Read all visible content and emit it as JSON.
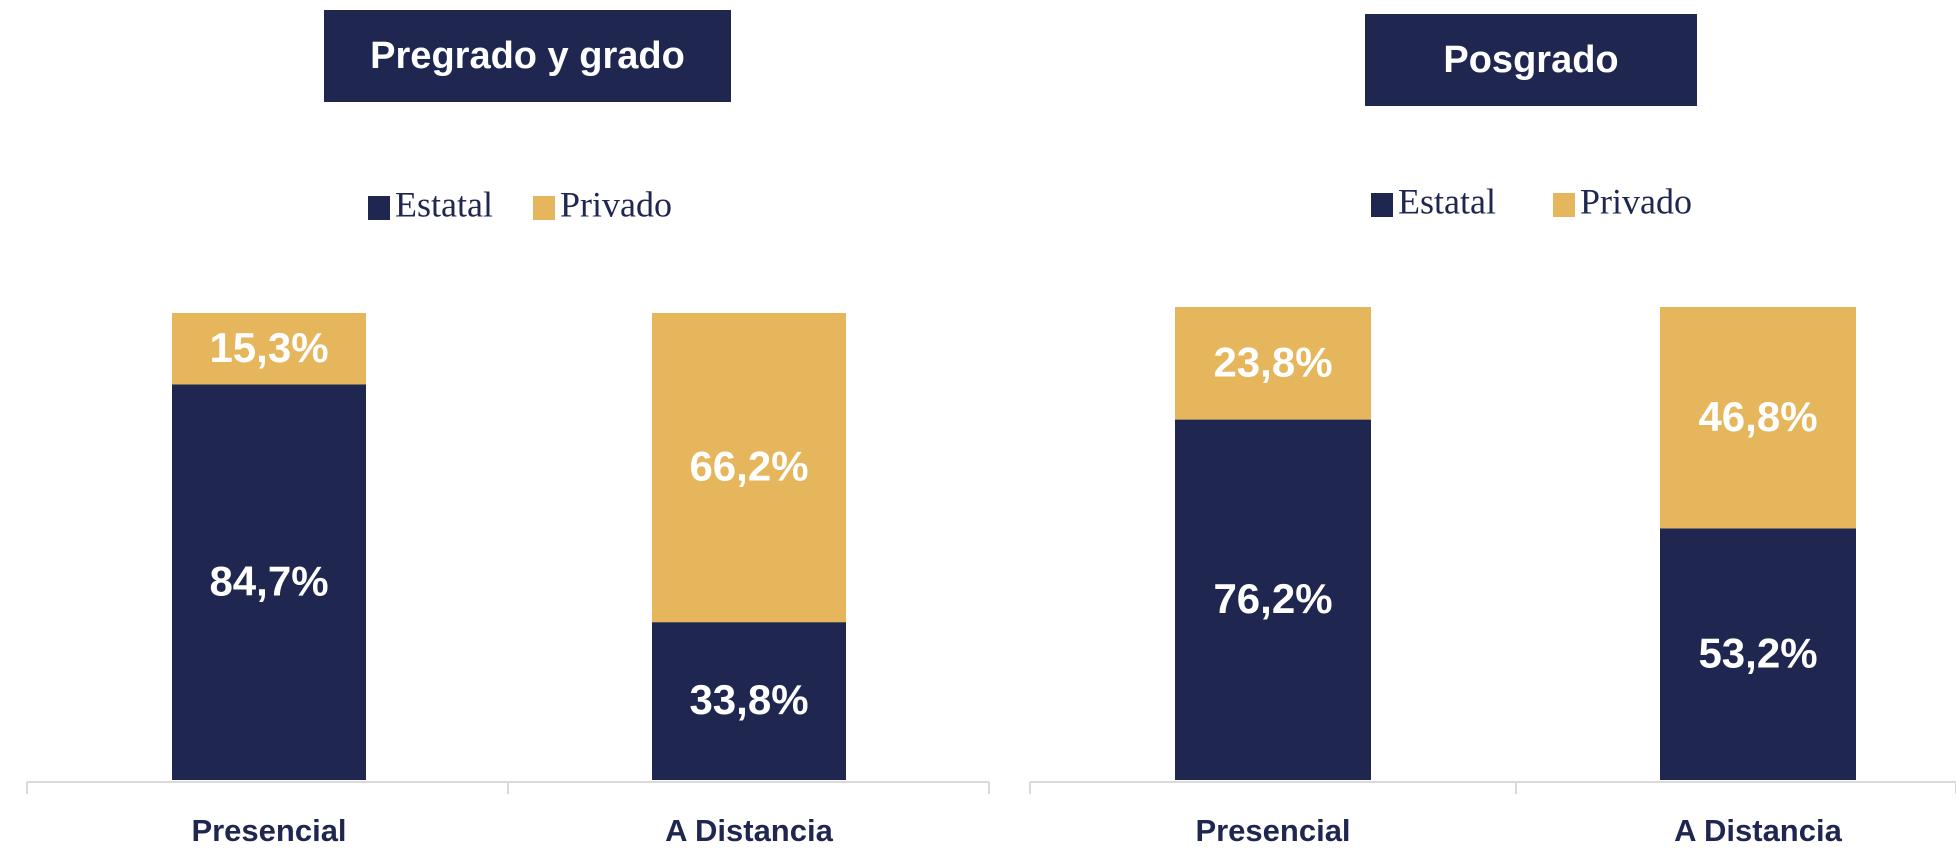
{
  "chart_data": [
    {
      "type": "bar",
      "stacked": true,
      "title": "Pregrado y grado",
      "categories": [
        "Presencial",
        "A Distancia"
      ],
      "series": [
        {
          "name": "Estatal",
          "color": "#1f2750",
          "values": [
            84.7,
            33.8
          ],
          "value_labels": [
            "84,7%",
            "33,8%"
          ]
        },
        {
          "name": "Privado",
          "color": "#e5b65c",
          "values": [
            15.3,
            66.2
          ],
          "value_labels": [
            "15,3%",
            "66,2%"
          ]
        }
      ],
      "ylim": [
        0,
        100
      ]
    },
    {
      "type": "bar",
      "stacked": true,
      "title": "Posgrado",
      "categories": [
        "Presencial",
        "A Distancia"
      ],
      "series": [
        {
          "name": "Estatal",
          "color": "#1f2750",
          "values": [
            76.2,
            53.2
          ],
          "value_labels": [
            "76,2%",
            "53,2%"
          ]
        },
        {
          "name": "Privado",
          "color": "#e5b65c",
          "values": [
            23.8,
            46.8
          ],
          "value_labels": [
            "23,8%",
            "46,8%"
          ]
        }
      ],
      "ylim": [
        0,
        100
      ]
    }
  ]
}
